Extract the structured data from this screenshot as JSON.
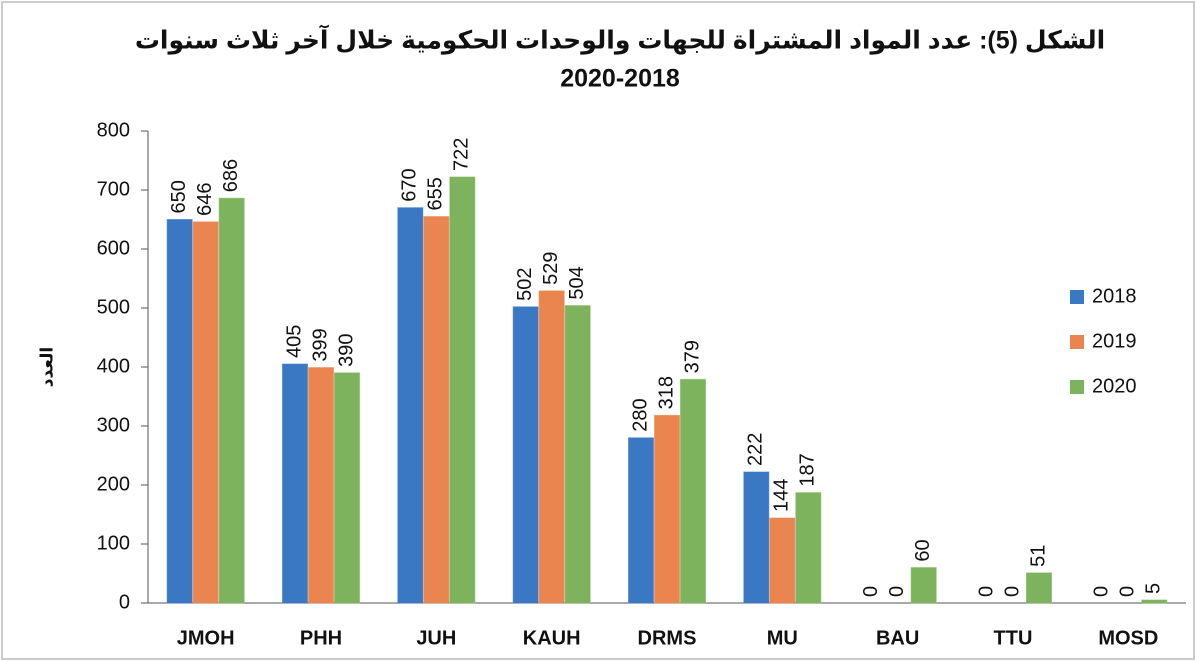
{
  "chart_data": {
    "type": "bar",
    "title": "الشكل (5): عدد المواد المشتراة للجهات والوحدات الحكومية خلال آخر ثلاث سنوات",
    "subtitle": "2020-2018",
    "y_label": "العدد",
    "categories": [
      "JMOH",
      "PHH",
      "JUH",
      "KAUH",
      "DRMS",
      "MU",
      "BAU",
      "TTU",
      "MOSD"
    ],
    "series": [
      {
        "name": "2018",
        "color": "#3b78c3",
        "values": [
          650,
          405,
          670,
          502,
          280,
          222,
          0,
          0,
          0
        ]
      },
      {
        "name": "2019",
        "color": "#ea8550",
        "values": [
          646,
          399,
          655,
          529,
          318,
          144,
          0,
          0,
          0
        ]
      },
      {
        "name": "2020",
        "color": "#7db35c",
        "values": [
          686,
          390,
          722,
          504,
          379,
          187,
          60,
          51,
          5
        ]
      }
    ],
    "ylim": [
      0,
      800
    ],
    "yticks": [
      0,
      100,
      200,
      300,
      400,
      500,
      600,
      700,
      800
    ],
    "legend": "right"
  }
}
